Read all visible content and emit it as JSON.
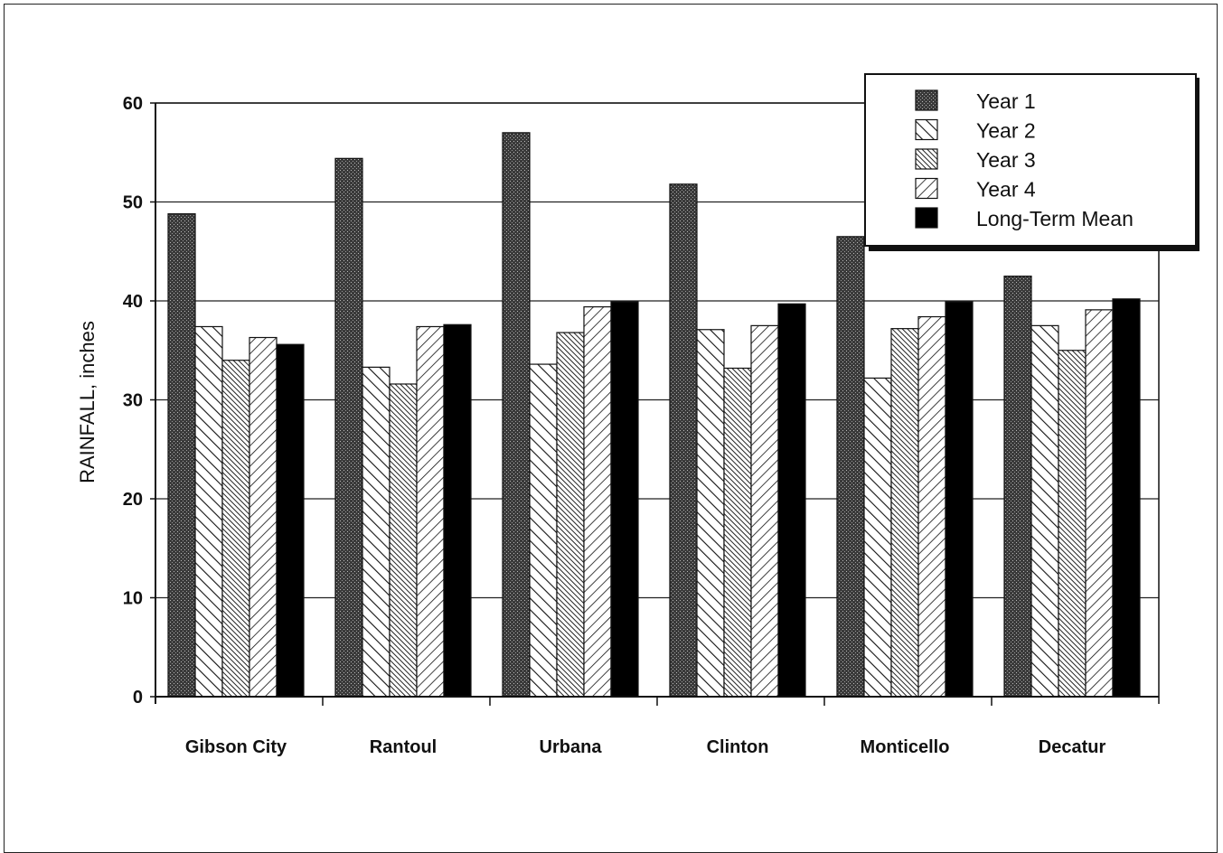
{
  "chart_data": {
    "type": "bar",
    "title": "",
    "xlabel": "",
    "ylabel": "RAINFALL, inches",
    "ylim": [
      0,
      60
    ],
    "yticks": [
      0,
      10,
      20,
      30,
      40,
      50,
      60
    ],
    "grid": true,
    "legend_position": "top-right",
    "categories": [
      "Gibson City",
      "Rantoul",
      "Urbana",
      "Clinton",
      "Monticello",
      "Decatur"
    ],
    "series": [
      {
        "name": "Year 1",
        "pattern": "dense-dots",
        "values": [
          48.8,
          54.4,
          57.0,
          51.8,
          46.5,
          42.5
        ]
      },
      {
        "name": "Year 2",
        "pattern": "backslash-hatch",
        "values": [
          37.4,
          33.3,
          33.6,
          37.1,
          32.2,
          37.5
        ]
      },
      {
        "name": "Year 3",
        "pattern": "fine-backslash-hatch",
        "values": [
          34.0,
          31.6,
          36.8,
          33.2,
          37.2,
          35.0
        ]
      },
      {
        "name": "Year 4",
        "pattern": "slash-hatch",
        "values": [
          36.3,
          37.4,
          39.4,
          37.5,
          38.4,
          39.1
        ]
      },
      {
        "name": "Long-Term Mean",
        "pattern": "solid-black",
        "values": [
          35.6,
          37.6,
          39.9,
          39.7,
          39.9,
          40.2
        ]
      }
    ]
  }
}
